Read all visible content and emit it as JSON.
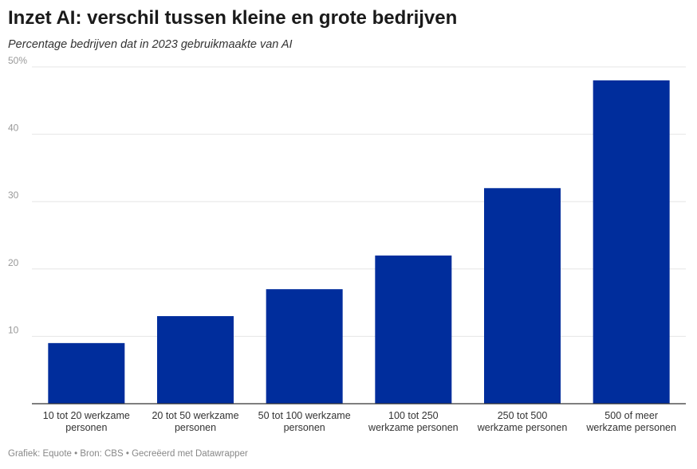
{
  "header": {
    "title": "Inzet AI: verschil tussen kleine en grote bedrijven",
    "subtitle": "Percentage bedrijven dat in 2023 gebruikmaakte van AI"
  },
  "footer": {
    "text": "Grafiek: Equote • Bron: CBS • Gecreëerd met Datawrapper"
  },
  "chart_data": {
    "type": "bar",
    "title": "Inzet AI: verschil tussen kleine en grote bedrijven",
    "subtitle": "Percentage bedrijven dat in 2023 gebruikmaakte van AI",
    "categories": [
      [
        "10 tot 20 werkzame",
        "personen"
      ],
      [
        "20 tot 50 werkzame",
        "personen"
      ],
      [
        "50 tot 100 werkzame",
        "personen"
      ],
      [
        "100 tot 250",
        "werkzame personen"
      ],
      [
        "250 tot 500",
        "werkzame personen"
      ],
      [
        "500 of meer",
        "werkzame personen"
      ]
    ],
    "values": [
      9,
      13,
      17,
      22,
      32,
      48
    ],
    "ylim": [
      0,
      50
    ],
    "yticks": [
      10,
      20,
      30,
      40,
      50
    ],
    "ytick_labels": [
      "10",
      "20",
      "30",
      "40",
      "50%"
    ],
    "grid": true,
    "bar_color": "#002d9c",
    "grid_color": "#e6e6e6",
    "axis_color": "#333333"
  }
}
